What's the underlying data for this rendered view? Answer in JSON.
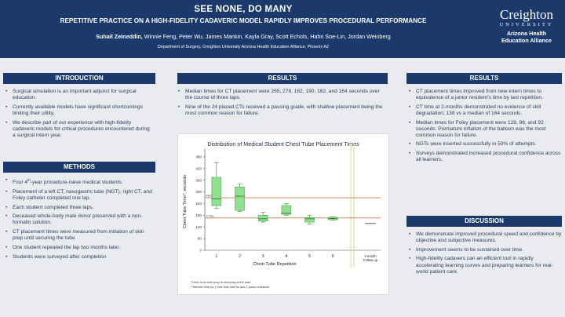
{
  "header": {
    "title": "SEE NONE, DO MANY",
    "subtitle": "REPETITIVE PRACTICE ON A HIGH-FIDELITY CADAVERIC MODEL RAPIDLY IMPROVES PROCEDURAL PERFORMANCE",
    "lead_author": "Suhail Zeineddin,",
    "coauthors": " Winnie Feng, Peter Wu, James Mankin, Kayla Gray, Scott Echols, Hahn Soe-Lin, Jordan Weinberg",
    "department": "Department of Surgery, Creighton University Arizona Health Education Alliance, Phoenix AZ"
  },
  "logo": {
    "name": "Creighton",
    "university": "UNIVERSITY",
    "line1": "Arizona Health",
    "line2": "Education Alliance"
  },
  "introduction": {
    "heading": "INTRODUCTION",
    "bullets": [
      "Surgical simulation is an important adjunct for surgical education.",
      "Currently available models have significant shortcomings limiting their utility.",
      "We describe part of our experience with high-fidelity cadaveric models for critical procedures encountered during a surgical intern year."
    ]
  },
  "methods": {
    "heading": "METHODS",
    "bullet0_pre": "Four 4",
    "bullet0_sup": "th",
    "bullet0_post": "-year procedure-naive medical students.",
    "bullets": [
      "Placement of a left CT, nasogastric tube (NGT), right CT, and Foley catheter completed one lap.",
      "Each student completed three laps.",
      "Deceased whole-body male donor preserved with a non-formalin solution.",
      "CT placement times were measured from initiation of skin prep until securing the tube",
      "One student repeated the lap two months later.",
      "Students were surveyed after completion"
    ]
  },
  "results_center": {
    "heading": "RESULTS",
    "bullets": [
      "Median times for CT placement were 265, 278, 162, 190, 162, and 164 seconds over the course of three laps.",
      "Nine of the 24 placed CTs received a passing grade, with shallow placement being the most common reason for failure."
    ]
  },
  "results_right": {
    "heading": "RESULTS",
    "bullets": [
      "CT placement times improved from new-intern times to equivalence of a junior resident’s time by last repetition.",
      "CT time at 2-months demonstrated no evidence of skill degradation; 138 vs a median of 164 seconds.",
      "Median times for Foley placement were 128, 98, and 92 seconds. Premature inflation of the balloon was the most common reason for failure.",
      "NGTs were inserted successfully in 50% of attempts.",
      "Surveys demonstrated increased procedural confidence across all learners."
    ]
  },
  "discussion": {
    "heading": "DISCUSSION",
    "bullets": [
      "We demonstrate improved procedural speed and confidence by objective and subjective measures.",
      "Improvement seems to be sustained over time.",
      "High-fidelity cadavers can an efficient tool in rapidly accelerating learning curves and preparing learners for real-world patient care."
    ]
  },
  "colors": {
    "navy": "#1b3a6b",
    "box_fill": "#8fe08f",
    "box_stroke": "#5aa85a",
    "ref_line": "#c8774a",
    "break_line": "#d4cf70"
  },
  "chart_data": {
    "type": "boxplot",
    "title": "Distribution of Medical Student Chest Tube Placement Times",
    "xlabel": "Chest Tube Repetition",
    "ylabel": "Chest Tube Time*, seconds",
    "ylim": [
      0,
      500
    ],
    "yticks": [
      0,
      60,
      120,
      180,
      240,
      300,
      360,
      420,
      480
    ],
    "grid": false,
    "categories": [
      "1",
      "2",
      "3",
      "4",
      "5",
      "6"
    ],
    "boxes": [
      {
        "whisker_low": 215,
        "q1": 230,
        "median": 265,
        "q3": 375,
        "whisker_high": 450
      },
      {
        "whisker_low": 200,
        "q1": 205,
        "median": 278,
        "q3": 325,
        "whisker_high": 340
      },
      {
        "whisker_low": 145,
        "q1": 150,
        "median": 162,
        "q3": 180,
        "whisker_high": 195
      },
      {
        "whisker_low": 180,
        "q1": 185,
        "median": 190,
        "q3": 230,
        "whisker_high": 240
      },
      {
        "whisker_low": 135,
        "q1": 145,
        "median": 162,
        "q3": 168,
        "whisker_high": 180
      },
      {
        "whisker_low": 155,
        "q1": 157,
        "median": 164,
        "q3": 170,
        "whisker_high": 172
      }
    ],
    "reference_lines": [
      {
        "label": "Intern",
        "value": 270
      },
      {
        "label": "Jr. Res.",
        "value": 166
      }
    ],
    "followup": {
      "label_line1": "2-month",
      "label_line2": "Follow-up",
      "value": 138
    },
    "footnotes": [
      "*Time: from skin prep to securing of the tube",
      "**Median time for 2 first-time interns and 2 junior residents"
    ]
  }
}
